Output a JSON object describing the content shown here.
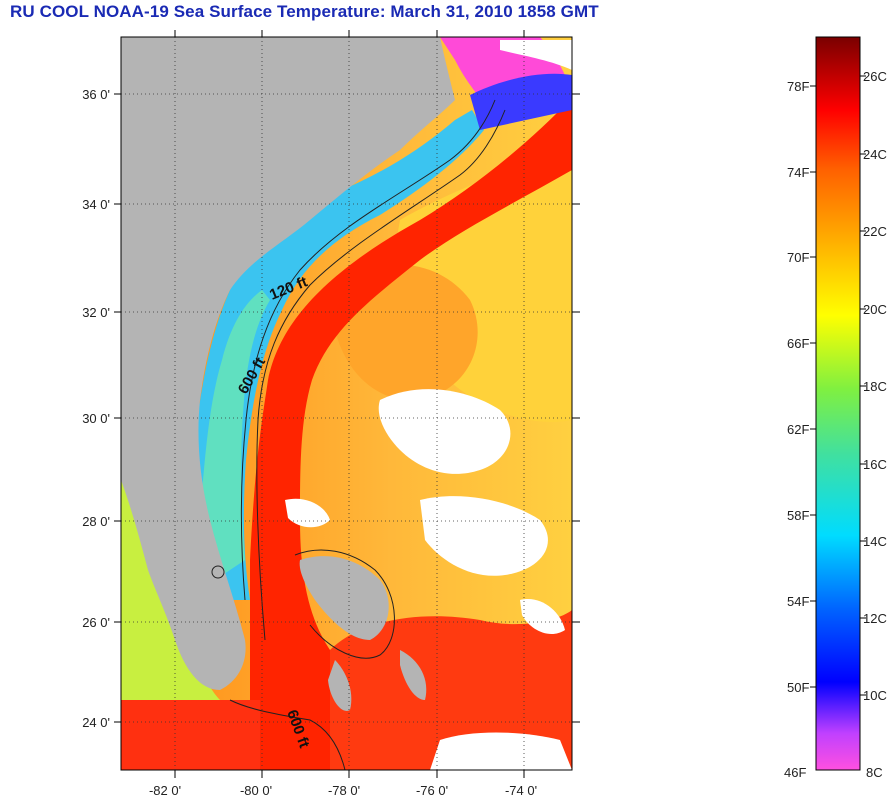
{
  "title": "RU COOL  NOAA-19  Sea Surface Temperature:  March 31, 2010 1858 GMT",
  "latitude_labels": [
    "36 0'",
    "34 0'",
    "32 0'",
    "30 0'",
    "28 0'",
    "26 0'",
    "24 0'"
  ],
  "longitude_labels": [
    "-82 0'",
    "-80 0'",
    "-78 0'",
    "-76 0'",
    "-74 0'"
  ],
  "contour_labels": {
    "shelf": "120 ft",
    "slope": "600 ft",
    "south": "600 ft"
  },
  "colorbar": {
    "fahrenheit_labels": [
      "78F",
      "74F",
      "70F",
      "66F",
      "62F",
      "58F",
      "54F",
      "50F",
      "46F"
    ],
    "celsius_labels": [
      "26C",
      "24C",
      "22C",
      "20C",
      "18C",
      "16C",
      "14C",
      "12C",
      "10C",
      "8C"
    ]
  },
  "colors": {
    "title": "#1a2ab4",
    "land": "#b4b4b4",
    "gulf_stream": "#ff2a00",
    "warm_offshore": "#ff9a1c",
    "cool_shelf": "#3bc4f0"
  },
  "icons": [
    "graticule-grid",
    "bathymetry-contour",
    "cloud-mask"
  ]
}
